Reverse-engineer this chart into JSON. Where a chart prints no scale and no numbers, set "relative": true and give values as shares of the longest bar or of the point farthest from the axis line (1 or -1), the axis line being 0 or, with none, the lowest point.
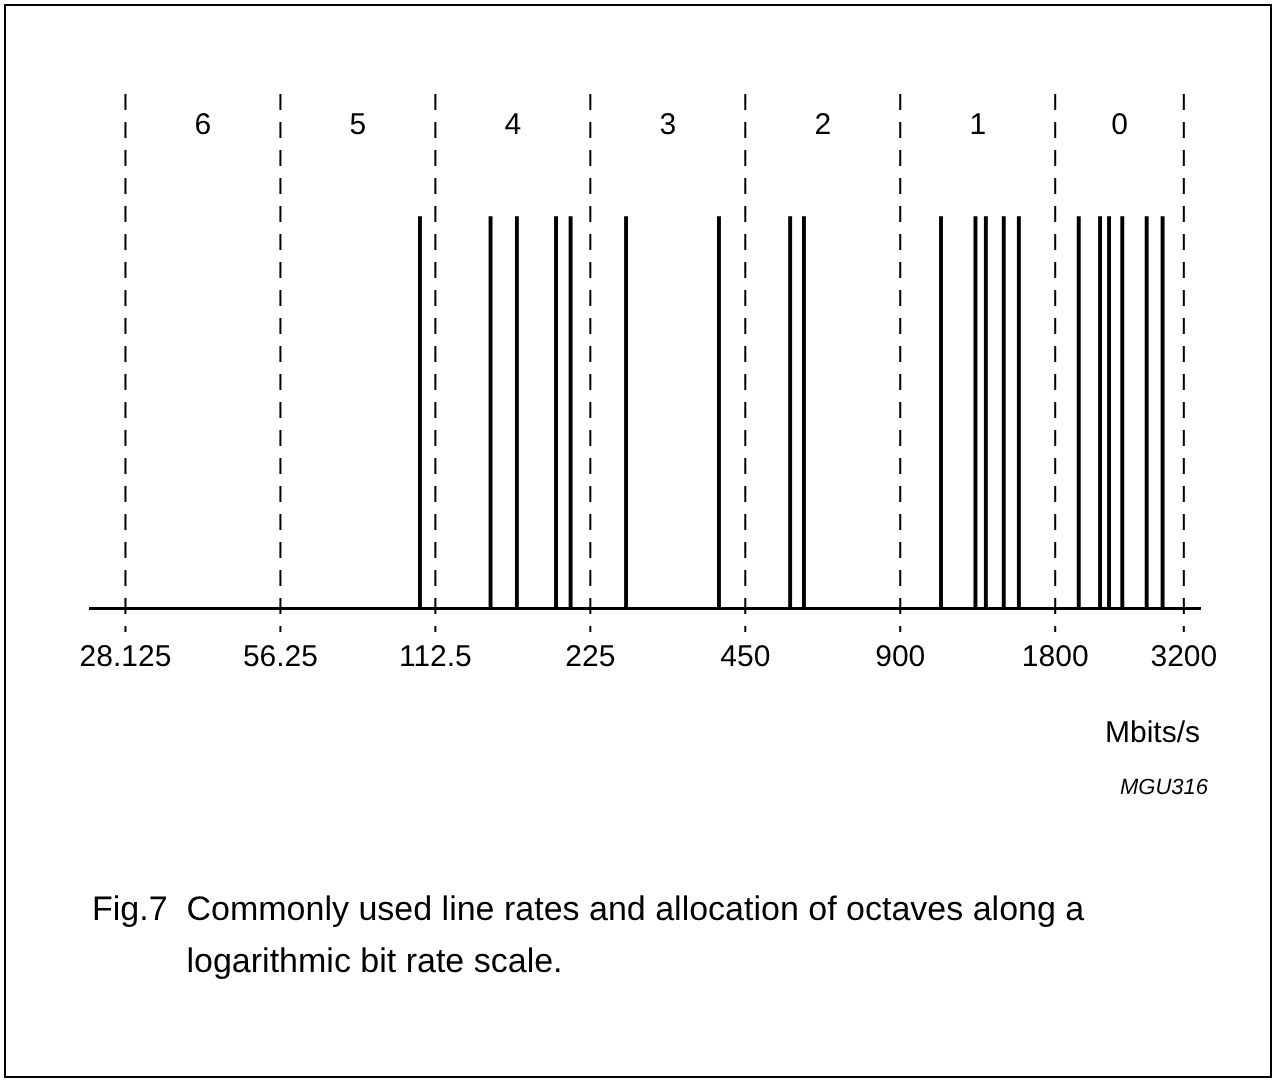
{
  "chart_data": {
    "type": "bar",
    "relative": true,
    "log": "x",
    "xlim": [
      24,
      3440
    ],
    "xticks": [
      28.125,
      56.25,
      112.5,
      225,
      450,
      900,
      1800,
      3200
    ],
    "xlabel": "Mbits/s",
    "grid": false,
    "legend": false,
    "x": [
      105,
      144,
      162,
      193,
      206,
      264,
      400,
      550,
      585,
      1080,
      1260,
      1320,
      1430,
      1530,
      2000,
      2200,
      2290,
      2430,
      2710,
      2910
    ],
    "series": [
      {
        "color": "#000000",
        "values": [
          1,
          1,
          1,
          1,
          1,
          1,
          1,
          1,
          1,
          1,
          1,
          1,
          1,
          1,
          1,
          1,
          1,
          1,
          1,
          1
        ]
      }
    ],
    "ref_lines": [
      {
        "axis": "x",
        "value": 28.125,
        "color": "#000000",
        "line_style": "dashed"
      },
      {
        "axis": "x",
        "value": 56.25,
        "color": "#000000",
        "line_style": "dashed"
      },
      {
        "axis": "x",
        "value": 112.5,
        "color": "#000000",
        "line_style": "dashed"
      },
      {
        "axis": "x",
        "value": 225,
        "color": "#000000",
        "line_style": "dashed"
      },
      {
        "axis": "x",
        "value": 450,
        "color": "#000000",
        "line_style": "dashed"
      },
      {
        "axis": "x",
        "value": 900,
        "color": "#000000",
        "line_style": "dashed"
      },
      {
        "axis": "x",
        "value": 1800,
        "color": "#000000",
        "line_style": "dashed"
      },
      {
        "axis": "x",
        "value": 3200,
        "color": "#000000",
        "line_style": "dashed"
      }
    ],
    "annotations": [
      "6",
      "5",
      "4",
      "3",
      "2",
      "1",
      "0",
      "MGU316",
      "Fig.7  Commonly used line rates and allocation of octaves along a logarithmic bit rate scale."
    ]
  }
}
